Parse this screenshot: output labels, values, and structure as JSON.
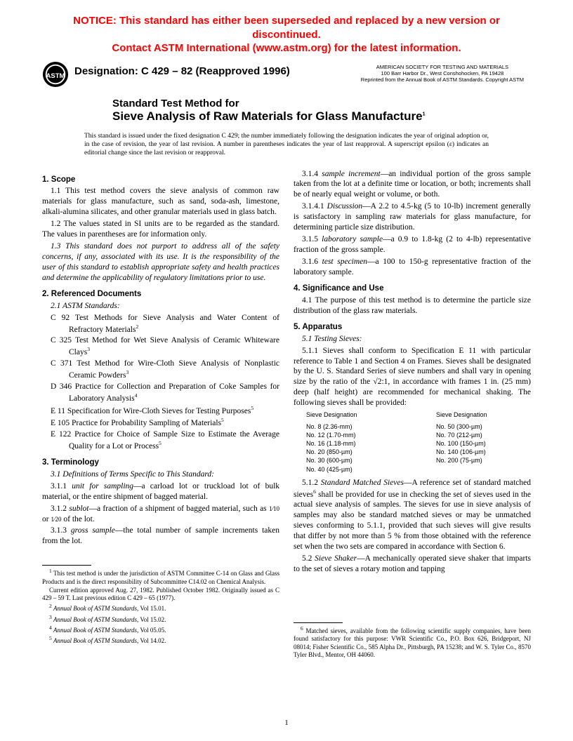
{
  "notice": {
    "line1": "NOTICE: This standard has either been superseded and replaced by a new version or discontinued.",
    "line2": "Contact ASTM International (www.astm.org) for the latest information."
  },
  "designation": "Designation: C 429 – 82 (Reapproved 1996)",
  "society": {
    "line1": "AMERICAN SOCIETY FOR TESTING AND MATERIALS",
    "line2": "100 Barr Harbor Dr., West Conshohocken, PA 19428",
    "line3": "Reprinted from the Annual Book of ASTM Standards. Copyright ASTM"
  },
  "title": {
    "line1": "Standard Test Method for",
    "line2": "Sieve Analysis of Raw Materials for Glass Manufacture",
    "sup": "1"
  },
  "issue_note": "This standard is issued under the fixed designation C 429; the number immediately following the designation indicates the year of original adoption or, in the case of revision, the year of last revision. A number in parentheses indicates the year of last reapproval. A superscript epsilon (ε) indicates an editorial change since the last revision or reapproval.",
  "left": {
    "s1_head": "1. Scope",
    "s1_1": "1.1 This test method covers the sieve analysis of common raw materials for glass manufacture, such as sand, soda-ash, limestone, alkali-alumina silicates, and other granular materials used in glass batch.",
    "s1_2": "1.2 The values stated in SI units are to be regarded as the standard. The values in parentheses are for information only.",
    "s1_3": "1.3 This standard does not purport to address all of the safety concerns, if any, associated with its use. It is the responsibility of the user of this standard to establish appropriate safety and health practices and determine the applicability of regulatory limitations prior to use.",
    "s2_head": "2. Referenced Documents",
    "s2_1": "2.1 ASTM Standards:",
    "refs": [
      {
        "t": "C 92 Test Methods for Sieve Analysis and Water Content of Refractory Materials",
        "s": "2"
      },
      {
        "t": "C 325 Test Method for Wet Sieve Analysis of Ceramic Whiteware Clays",
        "s": "3"
      },
      {
        "t": "C 371 Test Method for Wire-Cloth Sieve Analysis of Nonplastic Ceramic Powders",
        "s": "3"
      },
      {
        "t": "D 346 Practice for Collection and Preparation of Coke Samples for Laboratory Analysis",
        "s": "4"
      },
      {
        "t": "E 11 Specification for Wire-Cloth Sieves for Testing Purposes",
        "s": "5"
      },
      {
        "t": "E 105 Practice for Probability Sampling of Materials",
        "s": "5"
      },
      {
        "t": "E 122 Practice for Choice of Sample Size to Estimate the Average Quality for a Lot or Process",
        "s": "5"
      }
    ],
    "s3_head": "3. Terminology",
    "s3_1": "3.1 Definitions of Terms Specific to This Standard:",
    "s3_1_1": "3.1.1 unit for sampling—a carload lot or truckload lot of bulk material, or the entire shipment of bagged material.",
    "s3_1_2_a": "3.1.2 sublot—a fraction of a shipment of bagged material, such as ",
    "s3_1_2_b": " of the lot.",
    "frac1": "1⁄10",
    "or": " or ",
    "frac2": "1⁄20",
    "s3_1_3": "3.1.3 gross sample—the total number of sample increments taken from the lot.",
    "footnotes": [
      {
        "s": "1",
        "t": " This test method is under the jurisdiction of ASTM Committee C-14 on Glass and Glass Products and is the direct responsibility of Subcommittee C14.02 on Chemical Analysis."
      },
      {
        "s": "",
        "t": "Current edition approved Aug. 27, 1982. Published October 1982. Originally issued as C 429 – 59 T. Last previous edition C 429 – 65 (1977)."
      },
      {
        "s": "2",
        "t": " Annual Book of ASTM Standards, Vol 15.01."
      },
      {
        "s": "3",
        "t": " Annual Book of ASTM Standards, Vol 15.02."
      },
      {
        "s": "4",
        "t": " Annual Book of ASTM Standards, Vol 05.05."
      },
      {
        "s": "5",
        "t": " Annual Book of ASTM Standards, Vol 14.02."
      }
    ]
  },
  "right": {
    "s3_1_4": "3.1.4 sample increment—an individual portion of the gross sample taken from the lot at a definite time or location, or both; increments shall be of nearly equal weight or volume, or both.",
    "s3_1_4_1": "3.1.4.1 Discussion—A 2.2 to 4.5-kg (5 to 10-lb) increment generally is satisfactory in sampling raw materials for glass manufacture, for determining particle size distribution.",
    "s3_1_5": "3.1.5 laboratory sample—a 0.9 to 1.8-kg (2 to 4-lb) representative fraction of the gross sample.",
    "s3_1_6": "3.1.6 test specimen—a 100 to 150-g representative fraction of the laboratory sample.",
    "s4_head": "4. Significance and Use",
    "s4_1": "4.1 The purpose of this test method is to determine the particle size distribution of the glass raw materials.",
    "s5_head": "5. Apparatus",
    "s5_1": "5.1 Testing Sieves:",
    "s5_1_1": "5.1.1 Sieves shall conform to Specification E 11 with particular reference to Table 1 and Section 4 on Frames. Sieves shall be designated by the U. S. Standard Series of sieve numbers and shall vary in opening size by the ratio of the √2:1, in accordance with frames 1 in. (25 mm) deep (half height) are recommended for mechanical shaking. The following sieves shall be provided:",
    "sieve_head1": "Sieve Designation",
    "sieve_head2": "Sieve Designation",
    "sieves_left": [
      "No. 8  (2.36-mm)",
      "No. 12 (1.70-mm)",
      "No. 16 (1.18-mm)",
      "No. 20 (850-µm)",
      "No. 30 (600-µm)",
      "No. 40 (425-µm)"
    ],
    "sieves_right": [
      "No. 50  (300-µm)",
      "No. 70  (212-µm)",
      "No. 100 (150-µm)",
      "No. 140 (106-µm)",
      "No. 200 (75-µm)"
    ],
    "s5_1_2a": "5.1.2 Standard Matched Sieves—A reference set of standard matched sieves",
    "s5_1_2b": " shall be provided for use in checking the set of sieves used in the actual sieve analysis of samples. The sieves for use in sieve analysis of samples may also be standard matched sieves or may be unmatched sieves conforming to 5.1.1, provided that such sieves will give results that differ by not more than 5 % from those obtained with the reference set when the two sets are compared in accordance with Section 6.",
    "s5_1_2_sup": "6",
    "s5_2": "5.2 Sieve Shaker—A mechanically operated sieve shaker that imparts to the set of sieves a rotary motion and tapping",
    "fn6": " Matched sieves, available from the following scientific supply companies, have been found satisfactory for this purpose: VWR Scientific Co., P.O. Box 626, Bridgeport, NJ 08014; Fisher Scientific Co., 585 Alpha Dr., Pittsburgh, PA 15238; and W. S. Tyler Co., 8570 Tyler Blvd., Mentor, OH 44060.",
    "fn6_sup": "6"
  },
  "page_num": "1"
}
